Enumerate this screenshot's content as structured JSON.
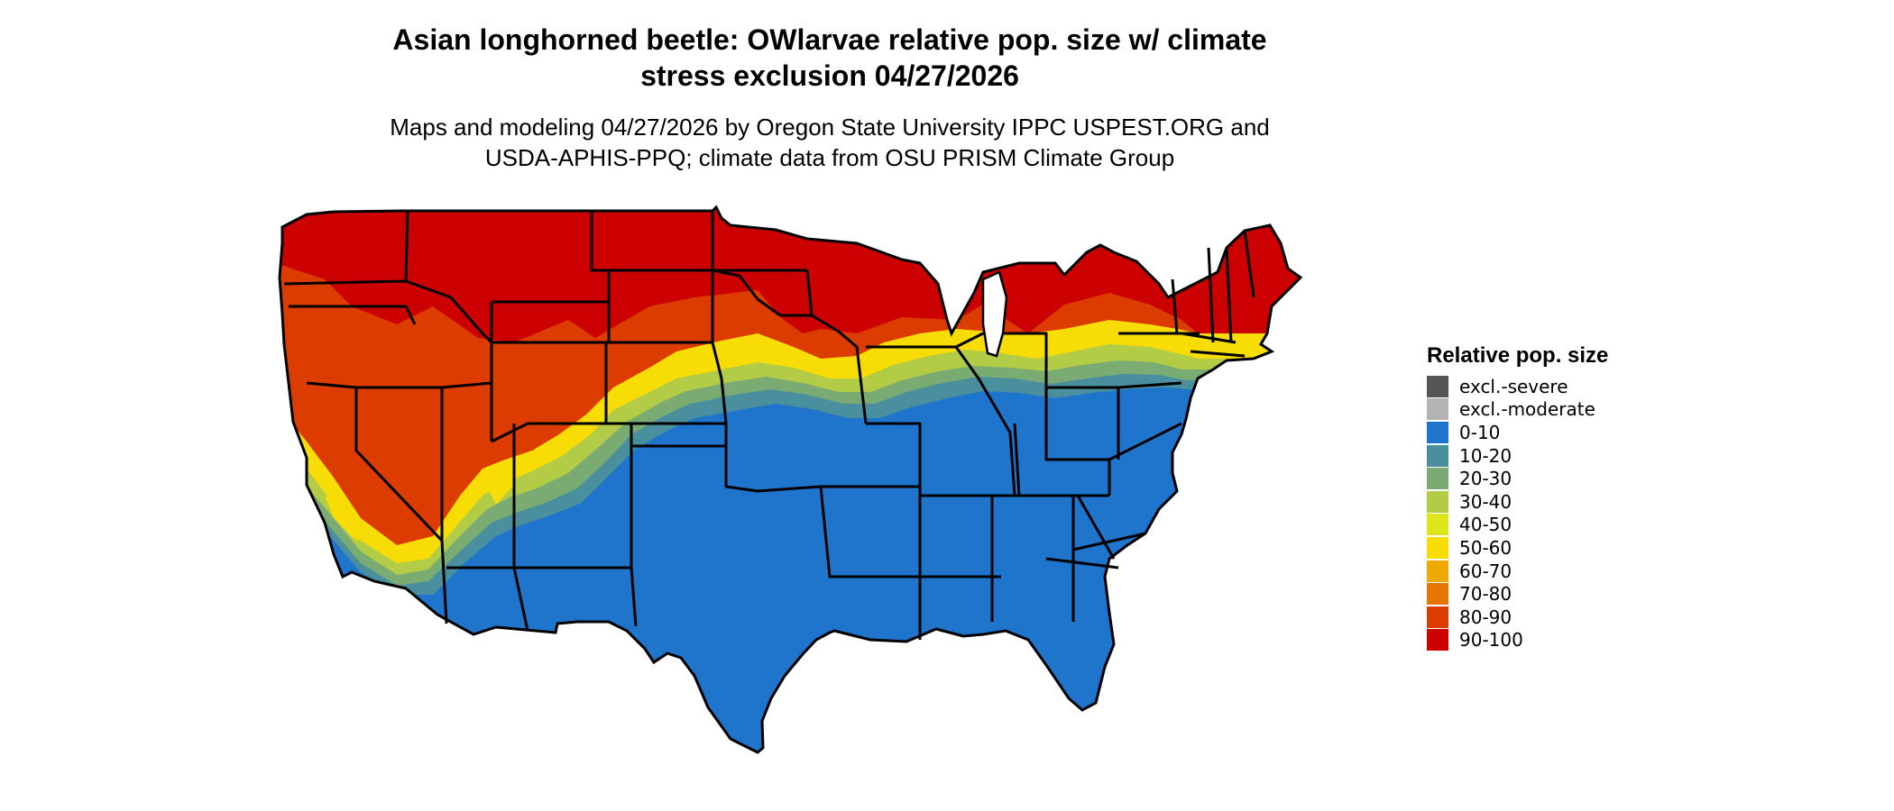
{
  "title": {
    "line1": "Asian longhorned beetle: OWlarvae relative pop. size w/ climate",
    "line2": "stress exclusion 04/27/2026"
  },
  "subtitle": {
    "line1": "Maps and modeling 04/27/2026 by Oregon State University IPPC USPEST.ORG and",
    "line2": "USDA-APHIS-PPQ; climate data from OSU PRISM Climate Group"
  },
  "legend": {
    "title": "Relative pop. size",
    "items": [
      {
        "label": "excl.-severe",
        "color": "#555555"
      },
      {
        "label": "excl.-moderate",
        "color": "#b3b3b3"
      },
      {
        "label": "0-10",
        "color": "#1f74cc"
      },
      {
        "label": "10-20",
        "color": "#4a8f9e"
      },
      {
        "label": "20-30",
        "color": "#7aab72"
      },
      {
        "label": "30-40",
        "color": "#b2cc46"
      },
      {
        "label": "40-50",
        "color": "#dde51c"
      },
      {
        "label": "50-60",
        "color": "#f7dc05"
      },
      {
        "label": "60-70",
        "color": "#eeaa00"
      },
      {
        "label": "70-80",
        "color": "#e57400"
      },
      {
        "label": "80-90",
        "color": "#dc3c00"
      },
      {
        "label": "90-100",
        "color": "#cc0000"
      }
    ]
  },
  "map": {
    "region": "contiguous-us",
    "zone_colors": {
      "red": "#cc0000",
      "red_orange": "#dc3c00",
      "yellow": "#f7dc05",
      "yellow_green": "#b2cc46",
      "green": "#7aab72",
      "teal": "#4a8f9e",
      "blue": "#1f74cc"
    }
  }
}
